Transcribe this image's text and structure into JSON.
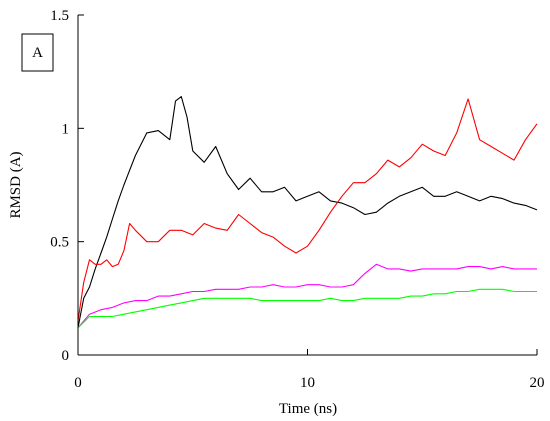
{
  "chart_data": {
    "type": "line",
    "panel_label": "A",
    "xlabel": "Time (ns)",
    "ylabel": "RMSD (A)",
    "xlim": [
      0,
      20
    ],
    "ylim": [
      0,
      1.5
    ],
    "x_ticks": [
      0,
      10,
      20
    ],
    "y_ticks": [
      0,
      0.5,
      1,
      1.5
    ],
    "y_tick_labels": [
      "0",
      "0.5",
      "1",
      "1.5"
    ],
    "grid": false,
    "legend": "none",
    "series": [
      {
        "color": "#000000",
        "x": [
          0,
          0.25,
          0.5,
          0.75,
          1,
          1.25,
          1.5,
          1.75,
          2,
          2.5,
          3,
          3.5,
          4,
          4.25,
          4.5,
          4.75,
          5,
          5.5,
          6,
          6.5,
          7,
          7.5,
          8,
          8.5,
          9,
          9.5,
          10,
          10.5,
          11,
          11.5,
          12,
          12.5,
          13,
          13.5,
          14,
          14.5,
          15,
          15.5,
          16,
          16.5,
          17,
          17.5,
          18,
          18.5,
          19,
          19.5,
          20
        ],
        "y": [
          0.12,
          0.25,
          0.3,
          0.38,
          0.45,
          0.52,
          0.6,
          0.68,
          0.75,
          0.88,
          0.98,
          0.99,
          0.95,
          1.12,
          1.14,
          1.05,
          0.9,
          0.85,
          0.92,
          0.8,
          0.73,
          0.78,
          0.72,
          0.72,
          0.74,
          0.68,
          0.7,
          0.72,
          0.68,
          0.67,
          0.65,
          0.62,
          0.63,
          0.67,
          0.7,
          0.72,
          0.74,
          0.7,
          0.7,
          0.72,
          0.7,
          0.68,
          0.7,
          0.69,
          0.67,
          0.66,
          0.64
        ]
      },
      {
        "color": "#ff0000",
        "x": [
          0,
          0.25,
          0.5,
          0.75,
          1,
          1.25,
          1.5,
          1.75,
          2,
          2.25,
          2.5,
          3,
          3.5,
          4,
          4.5,
          5,
          5.5,
          6,
          6.5,
          7,
          7.5,
          8,
          8.5,
          9,
          9.5,
          10,
          10.5,
          11,
          11.5,
          12,
          12.5,
          13,
          13.5,
          14,
          14.5,
          15,
          15.5,
          16,
          16.5,
          17,
          17.5,
          18,
          18.5,
          19,
          19.5,
          20
        ],
        "y": [
          0.15,
          0.32,
          0.42,
          0.4,
          0.4,
          0.42,
          0.39,
          0.4,
          0.46,
          0.58,
          0.55,
          0.5,
          0.5,
          0.55,
          0.55,
          0.53,
          0.58,
          0.56,
          0.55,
          0.62,
          0.58,
          0.54,
          0.52,
          0.48,
          0.45,
          0.48,
          0.55,
          0.63,
          0.7,
          0.76,
          0.76,
          0.8,
          0.86,
          0.83,
          0.87,
          0.93,
          0.9,
          0.88,
          0.98,
          1.13,
          0.95,
          0.92,
          0.89,
          0.86,
          0.95,
          1.02
        ]
      },
      {
        "color": "#ff00ff",
        "x": [
          0,
          0.5,
          1,
          1.5,
          2,
          2.5,
          3,
          3.5,
          4,
          4.5,
          5,
          5.5,
          6,
          6.5,
          7,
          7.5,
          8,
          8.5,
          9,
          9.5,
          10,
          10.5,
          11,
          11.5,
          12,
          12.5,
          13,
          13.5,
          14,
          14.5,
          15,
          15.5,
          16,
          16.5,
          17,
          17.5,
          18,
          18.5,
          19,
          19.5,
          20
        ],
        "y": [
          0.12,
          0.18,
          0.2,
          0.21,
          0.23,
          0.24,
          0.24,
          0.26,
          0.26,
          0.27,
          0.28,
          0.28,
          0.29,
          0.29,
          0.29,
          0.3,
          0.3,
          0.31,
          0.3,
          0.3,
          0.31,
          0.31,
          0.3,
          0.3,
          0.31,
          0.36,
          0.4,
          0.38,
          0.38,
          0.37,
          0.38,
          0.38,
          0.38,
          0.38,
          0.39,
          0.39,
          0.38,
          0.39,
          0.38,
          0.38,
          0.38
        ]
      },
      {
        "color": "#00ff00",
        "x": [
          0,
          0.5,
          1,
          1.5,
          2,
          2.5,
          3,
          3.5,
          4,
          4.5,
          5,
          5.5,
          6,
          6.5,
          7,
          7.5,
          8,
          8.5,
          9,
          9.5,
          10,
          10.5,
          11,
          11.5,
          12,
          12.5,
          13,
          13.5,
          14,
          14.5,
          15,
          15.5,
          16,
          16.5,
          17,
          17.5,
          18,
          18.5,
          19,
          19.5,
          20
        ],
        "y": [
          0.12,
          0.17,
          0.17,
          0.17,
          0.18,
          0.19,
          0.2,
          0.21,
          0.22,
          0.23,
          0.24,
          0.25,
          0.25,
          0.25,
          0.25,
          0.25,
          0.24,
          0.24,
          0.24,
          0.24,
          0.24,
          0.24,
          0.25,
          0.24,
          0.24,
          0.25,
          0.25,
          0.25,
          0.25,
          0.26,
          0.26,
          0.27,
          0.27,
          0.28,
          0.28,
          0.29,
          0.29,
          0.29,
          0.28,
          0.28,
          0.28
        ]
      }
    ]
  }
}
